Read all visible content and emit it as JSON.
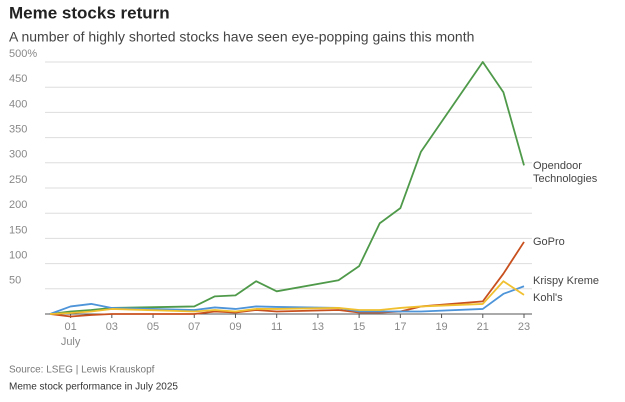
{
  "chart_data": {
    "type": "line",
    "title": "Meme stocks return",
    "subtitle": "A number of highly shorted stocks have seen eye-popping gains this month",
    "source": "Source: LSEG | Lewis Krauskopf",
    "caption": "Meme stock performance in July 2025",
    "x": [
      0,
      1,
      2,
      3,
      7,
      8,
      9,
      10,
      11,
      14,
      15,
      16,
      17,
      18,
      21,
      22,
      23
    ],
    "xlim": [
      0,
      23
    ],
    "xticks": [
      {
        "value": 1,
        "label": "01"
      },
      {
        "value": 3,
        "label": "03"
      },
      {
        "value": 5,
        "label": "05"
      },
      {
        "value": 7,
        "label": "07"
      },
      {
        "value": 9,
        "label": "09"
      },
      11,
      13,
      15,
      17,
      19,
      21,
      23
    ],
    "x_sublabel": "July",
    "ylim": [
      0,
      500
    ],
    "yticks": [
      50,
      100,
      150,
      200,
      250,
      300,
      350,
      400,
      450,
      {
        "value": 500,
        "label": "500%"
      }
    ],
    "grid": true,
    "series": [
      {
        "name": "Opendoor Technologies",
        "color": "#4f9a4a",
        "values": [
          0,
          5,
          8,
          12,
          15,
          35,
          37,
          65,
          45,
          67,
          95,
          180,
          210,
          322,
          500,
          440,
          295
        ]
      },
      {
        "name": "GoPro",
        "color": "#c8501e",
        "values": [
          0,
          -5,
          -2,
          0,
          0,
          5,
          3,
          8,
          5,
          8,
          3,
          3,
          5,
          15,
          25,
          80,
          143
        ]
      },
      {
        "name": "Krispy Kreme",
        "color": "#4d94d9",
        "values": [
          0,
          15,
          20,
          12,
          8,
          13,
          10,
          15,
          14,
          12,
          5,
          5,
          5,
          5,
          10,
          40,
          55
        ]
      },
      {
        "name": "Kohl's",
        "color": "#f0c030",
        "values": [
          0,
          2,
          5,
          10,
          5,
          8,
          5,
          10,
          10,
          12,
          8,
          8,
          12,
          15,
          20,
          65,
          38
        ]
      }
    ]
  }
}
